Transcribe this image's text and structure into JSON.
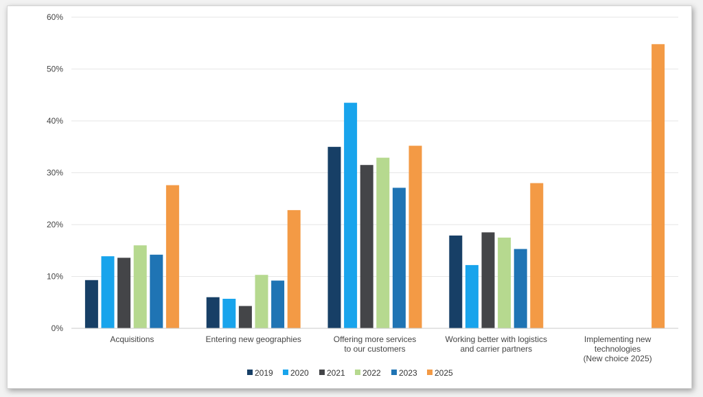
{
  "chart_data": {
    "type": "bar",
    "y_ticks": [
      "0%",
      "10%",
      "20%",
      "30%",
      "40%",
      "50%",
      "60%"
    ],
    "ylim": [
      0,
      60
    ],
    "grid": true,
    "legend_position": "bottom",
    "categories": [
      [
        "Acquisitions"
      ],
      [
        "Entering new geographies"
      ],
      [
        "Offering more services",
        "to our customers"
      ],
      [
        "Working better with logistics",
        "and carrier partners"
      ],
      [
        "Implementing new",
        "technologies",
        "(New choice 2025)"
      ]
    ],
    "series": [
      {
        "name": "2019",
        "color": "#173f66",
        "values": [
          9.3,
          6.0,
          35.0,
          17.9,
          null
        ]
      },
      {
        "name": "2020",
        "color": "#18a4ec",
        "values": [
          13.9,
          5.7,
          43.5,
          12.2,
          null
        ]
      },
      {
        "name": "2021",
        "color": "#444548",
        "values": [
          13.6,
          4.3,
          31.5,
          18.5,
          null
        ]
      },
      {
        "name": "2022",
        "color": "#b6d98f",
        "values": [
          16.0,
          10.3,
          32.9,
          17.5,
          null
        ]
      },
      {
        "name": "2023",
        "color": "#1f74b4",
        "values": [
          14.2,
          9.2,
          27.1,
          15.3,
          null
        ]
      },
      {
        "name": "2025",
        "color": "#f39a45",
        "values": [
          27.6,
          22.8,
          35.2,
          28.0,
          54.8
        ]
      }
    ]
  }
}
